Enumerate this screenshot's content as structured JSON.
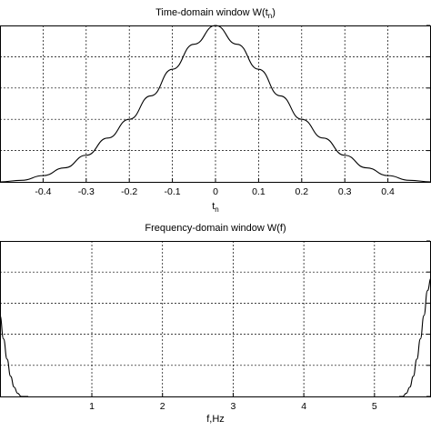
{
  "chart_data": [
    {
      "type": "line",
      "title": "Time-domain window W(t",
      "title_sub": "n",
      "title_tail": ")",
      "xlabel": "t",
      "xlabel_sub": "n",
      "ylabel": "",
      "xlim": [
        -0.5,
        0.5
      ],
      "ylim": [
        0,
        1
      ],
      "x_ticks": [
        -0.4,
        -0.3,
        -0.2,
        -0.1,
        0,
        0.1,
        0.2,
        0.3,
        0.4
      ],
      "x_tick_labels": [
        "-0.4",
        "-0.3",
        "-0.2",
        "-0.1",
        "0",
        "0.1",
        "0.2",
        "0.3",
        "0.4"
      ],
      "y_ticks": [
        0,
        0.2,
        0.4,
        0.6,
        0.8,
        1.0
      ],
      "y_tick_labels": [
        "",
        "",
        "",
        "",
        "",
        ""
      ],
      "grid": true,
      "series": [
        {
          "x": [
            -0.5,
            -0.45,
            -0.4,
            -0.35,
            -0.3,
            -0.25,
            -0.2,
            -0.15,
            -0.1,
            -0.05,
            0,
            0.05,
            0.1,
            0.15,
            0.2,
            0.25,
            0.3,
            0.35,
            0.4,
            0.45,
            0.5
          ],
          "y": [
            0.0,
            0.01,
            0.04,
            0.09,
            0.17,
            0.28,
            0.4,
            0.55,
            0.72,
            0.88,
            1.0,
            0.88,
            0.72,
            0.55,
            0.4,
            0.28,
            0.17,
            0.09,
            0.04,
            0.01,
            0.0
          ]
        }
      ]
    },
    {
      "type": "line",
      "title": "Frequency-domain window W(f)",
      "xlabel": "f,Hz",
      "ylabel": "",
      "xlim": [
        -0.3,
        5.8
      ],
      "ylim": [
        0,
        1
      ],
      "x_ticks": [
        1,
        2,
        3,
        4,
        5
      ],
      "x_tick_labels": [
        "1",
        "2",
        "3",
        "4",
        "5"
      ],
      "y_ticks": [
        0,
        0.2,
        0.4,
        0.6,
        0.8,
        1.0
      ],
      "y_tick_labels": [
        "",
        "",
        "",
        "",
        "",
        ""
      ],
      "grid": true,
      "series": [
        {
          "x": [
            -0.3,
            -0.25,
            -0.2,
            -0.15,
            -0.1,
            -0.05,
            0,
            0.05,
            0.1,
            5.35,
            5.4,
            5.45,
            5.5,
            5.55,
            5.6,
            5.65,
            5.7,
            5.75,
            5.8
          ],
          "y": [
            0.52,
            0.37,
            0.24,
            0.13,
            0.06,
            0.02,
            0.0,
            0.0,
            0.0,
            0.0,
            0.0,
            0.02,
            0.06,
            0.13,
            0.24,
            0.37,
            0.52,
            0.68,
            0.76
          ]
        }
      ]
    }
  ]
}
